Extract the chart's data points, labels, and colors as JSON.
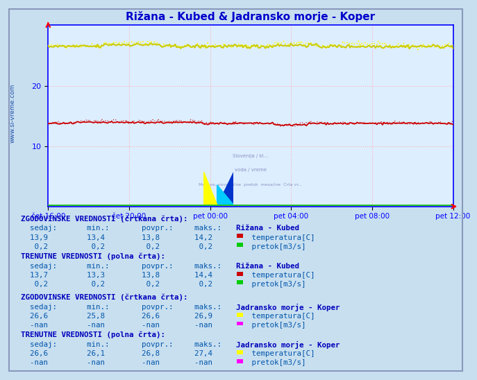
{
  "title": "Rižana - Kubed & Jadransko morje - Koper",
  "title_color": "#0000cc",
  "bg_color": "#c8dff0",
  "plot_bg_color": "#ddeeff",
  "grid_color": "#ffb0b0",
  "axis_color": "#0000ff",
  "ylim": [
    0,
    30
  ],
  "yticks": [
    10,
    20
  ],
  "xtick_labels": [
    "čet 16:00",
    "čet 20:00",
    "pet 00:00",
    "pet 04:00",
    "pet 08:00",
    "pet 12:00"
  ],
  "n_points": 288,
  "temp_rizana_avg": 13.8,
  "flow_rizana": 0.2,
  "temp_koper_avg": 26.6,
  "watermark": "www.si-vreme.com",
  "watermark_color": "#003399",
  "text_color": "#0055aa",
  "label_color": "#0000bb",
  "bold_color": "#000088",
  "table_font_size": 7.8,
  "station1": "Rižana - Kubed",
  "station2": "Jadransko morje - Koper",
  "color_temp_rizana": "#cc0000",
  "color_flow_rizana": "#00cc00",
  "color_temp_koper": "#ffff00",
  "color_flow_koper": "#ff00ff",
  "color_green_line": "#00bb00"
}
